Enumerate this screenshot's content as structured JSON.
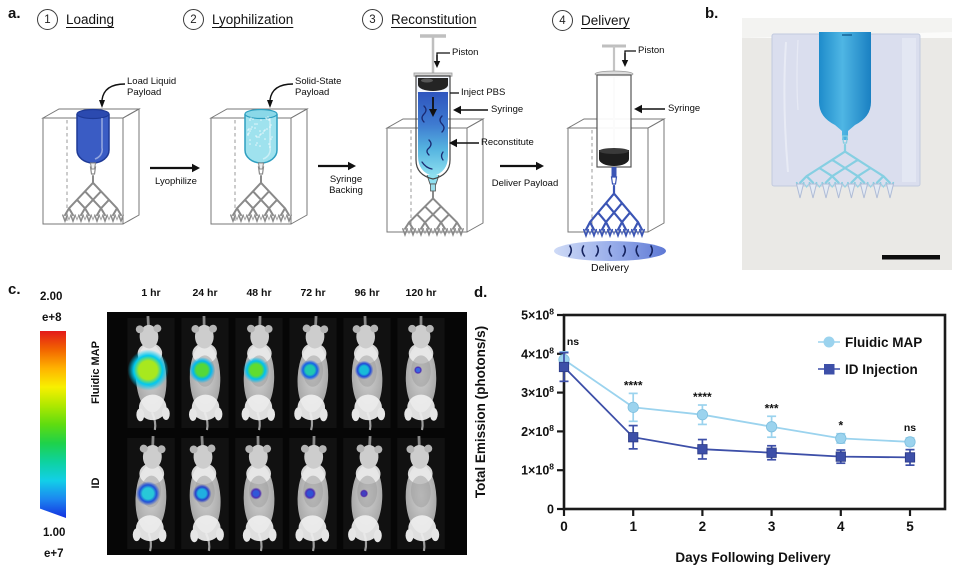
{
  "panel_a": {
    "label": "a.",
    "steps": [
      {
        "num": "1",
        "title": "Loading"
      },
      {
        "num": "2",
        "title": "Lyophilization"
      },
      {
        "num": "3",
        "title": "Reconstitution"
      },
      {
        "num": "4",
        "title": "Delivery"
      }
    ],
    "labels": {
      "load_payload": "Load Liquid Payload",
      "solid_payload": "Solid-State Payload",
      "lyophilize": "Lyophilize",
      "syringe_backing": "Syringe Backing",
      "deliver_payload": "Deliver Payload",
      "piston3": "Piston",
      "inject_pbs": "Inject PBS",
      "syringe3": "Syringe",
      "reconstitute": "Reconstitute",
      "piston4": "Piston",
      "syringe4": "Syringe",
      "delivery_caption": "Delivery"
    },
    "colors": {
      "liquid_payload": "#3A5CC4",
      "solid_payload": "#9FE2EE",
      "device_tree": "#3B55B5"
    }
  },
  "panel_b": {
    "label": "b."
  },
  "panel_c": {
    "label": "c.",
    "colorbar": {
      "top_value": "2.00",
      "top_exp": "e+8",
      "bottom_value": "1.00",
      "bottom_exp": "e+7",
      "gradient": [
        "#E31A1A",
        "#F26500",
        "#FFB300",
        "#F8F000",
        "#AEE800",
        "#5FDC10",
        "#1ED24A",
        "#0ED2A0",
        "#12CFE8",
        "#1C86F0",
        "#1430E0"
      ]
    },
    "timepoints": [
      "1 hr",
      "24 hr",
      "48 hr",
      "72 hr",
      "96 hr",
      "120 hr"
    ],
    "rows": [
      {
        "label": "Fluidic MAP",
        "spots": [
          {
            "r": 11,
            "c0": "#A8E81E",
            "c1": "#00C8F0"
          },
          {
            "r": 7,
            "c0": "#55D838",
            "c1": "#00B8F0"
          },
          {
            "r": 7,
            "c0": "#60DC30",
            "c1": "#00C0F0"
          },
          {
            "r": 5.5,
            "c0": "#20C8B0",
            "c1": "#1560E8"
          },
          {
            "r": 5,
            "c0": "#18BCD8",
            "c1": "#2048D8"
          },
          {
            "r": 2.2,
            "c0": "#3868E0",
            "c1": "#4828B8"
          }
        ]
      },
      {
        "label": "ID",
        "spots": [
          {
            "r": 6.5,
            "c0": "#28C8D8",
            "c1": "#2050D8"
          },
          {
            "r": 5,
            "c0": "#20B0E0",
            "c1": "#2840C8"
          },
          {
            "r": 3.2,
            "c0": "#3058D8",
            "c1": "#5030B0"
          },
          {
            "r": 3.2,
            "c0": "#2F52D4",
            "c1": "#4A2CB4"
          },
          {
            "r": 2.2,
            "c0": "#4040C0",
            "c1": "#5028A8"
          },
          {
            "r": 0,
            "c0": "",
            "c1": ""
          }
        ]
      }
    ]
  },
  "panel_d": {
    "label": "d."
  },
  "chart_data": {
    "type": "line",
    "x": [
      0,
      1,
      2,
      3,
      4,
      5
    ],
    "series": [
      {
        "name": "Fluidic MAP",
        "marker": "circle",
        "color": "#9BD3EE",
        "values": [
          385000000.0,
          262000000.0,
          243000000.0,
          212000000.0,
          182000000.0,
          173000000.0
        ],
        "errors": [
          20000000.0,
          36000000.0,
          25000000.0,
          27000000.0,
          12000000.0,
          10000000.0
        ]
      },
      {
        "name": "ID Injection",
        "marker": "square",
        "color": "#3D4FA8",
        "values": [
          366000000.0,
          185000000.0,
          154000000.0,
          145000000.0,
          135000000.0,
          133000000.0
        ],
        "errors": [
          37000000.0,
          30000000.0,
          25000000.0,
          18000000.0,
          17000000.0,
          20000000.0
        ]
      }
    ],
    "significance": [
      "ns",
      "****",
      "****",
      "***",
      "*",
      "ns"
    ],
    "xlabel": "Days Following Delivery",
    "ylabel": "Total Emission (photons/s)",
    "ylim": [
      0,
      500000000.0
    ],
    "ytick_step": 100000000.0,
    "ytick_labels": [
      "0",
      "1×10",
      "2×10",
      "3×10",
      "4×10",
      "5×10"
    ],
    "ytick_exp": "8",
    "grid": false,
    "legend_position": "top-right"
  }
}
